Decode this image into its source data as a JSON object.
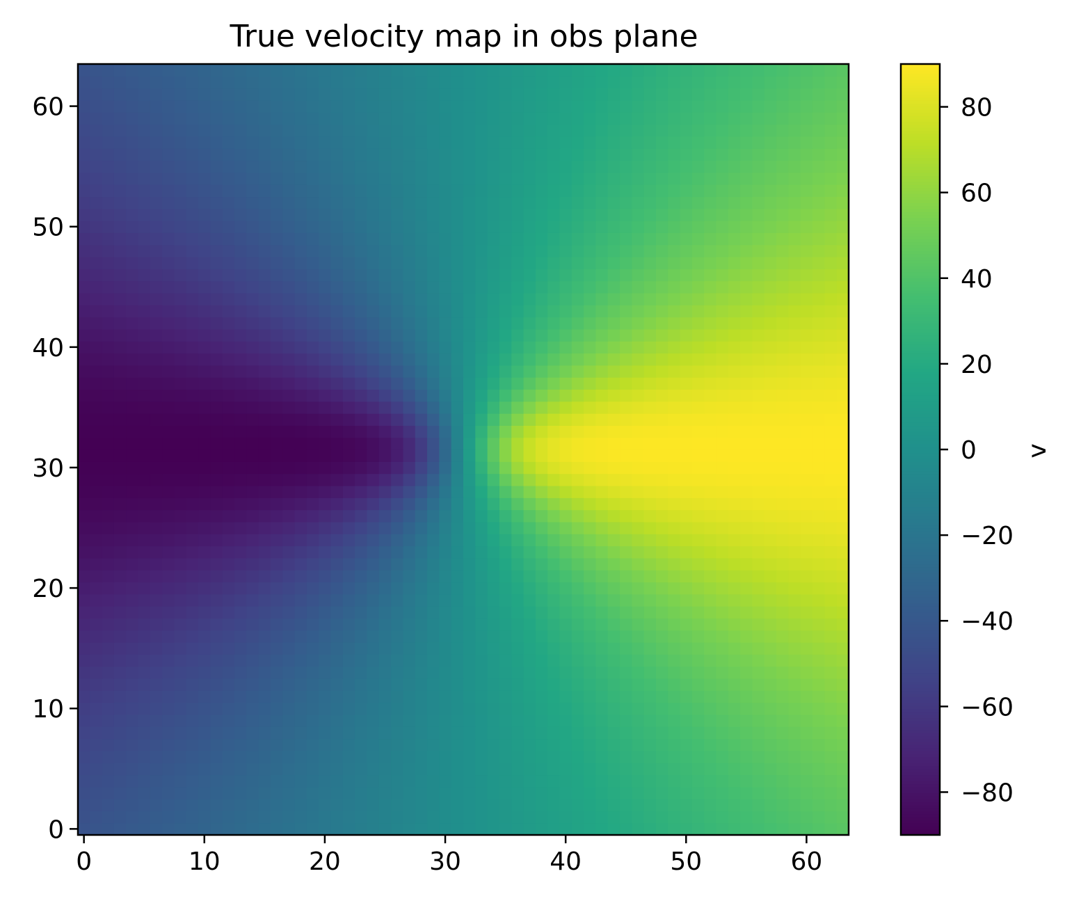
{
  "chart_data": {
    "type": "heatmap",
    "title": "True velocity map in obs plane",
    "xlabel": "",
    "ylabel": "",
    "grid_size": [
      64,
      64
    ],
    "xlim": [
      -0.5,
      63.5
    ],
    "ylim": [
      -0.5,
      63.5
    ],
    "x_ticks": [
      0,
      10,
      20,
      30,
      40,
      50,
      60
    ],
    "x_tick_labels": [
      "0",
      "10",
      "20",
      "30",
      "40",
      "50",
      "60"
    ],
    "y_ticks": [
      0,
      10,
      20,
      30,
      40,
      50,
      60
    ],
    "y_tick_labels": [
      "0",
      "10",
      "20",
      "30",
      "40",
      "50",
      "60"
    ],
    "colormap": "viridis",
    "value_range": [
      -90,
      90
    ],
    "field_model": {
      "center": [
        31.5,
        31.5
      ],
      "peak_velocity": 90,
      "turnover_radius_px": 4.5,
      "minor_axis_ratio": 0.55
    },
    "colorbar": {
      "label": "v",
      "ticks": [
        -80,
        -60,
        -40,
        -20,
        0,
        20,
        40,
        60,
        80
      ],
      "tick_labels": [
        "−80",
        "−60",
        "−40",
        "−20",
        "0",
        "20",
        "40",
        "60",
        "80"
      ]
    },
    "grid": false,
    "legend": "none"
  }
}
